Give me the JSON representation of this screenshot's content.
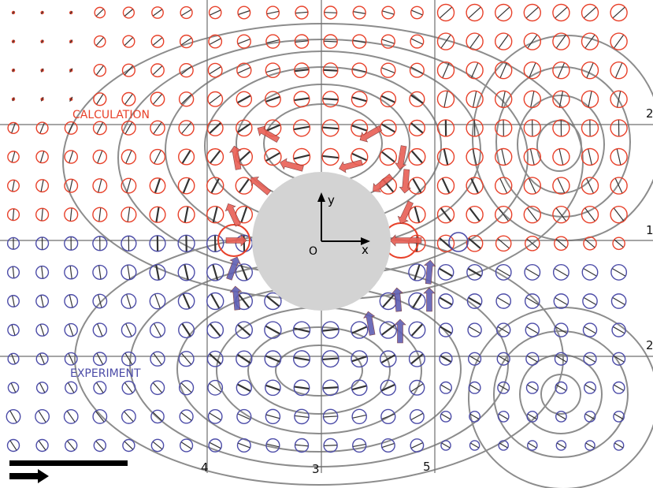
{
  "labels": {
    "calculation": "CALCULATION",
    "experiment": "EXPERIMENT",
    "origin": "O",
    "x_axis": "x",
    "y_axis": "y"
  },
  "line_labels": {
    "bottom": [
      "4",
      "3",
      "5"
    ],
    "right": [
      "2",
      "1",
      "2"
    ]
  },
  "colors": {
    "calculation": "#e8412a",
    "calculation_arrow": "#e85f55",
    "experiment": "#4c4ca8",
    "experiment_arrow": "#5f5fb3",
    "contour": "#8c8c8c",
    "grid_line": "#6f6f6f",
    "sphere": "#d3d3d3",
    "axes": "#000000",
    "scale_bar": "#000000"
  },
  "legend": {
    "scale_bar_icon": "scale-bar",
    "arrow_icon": "right-arrow-icon"
  }
}
